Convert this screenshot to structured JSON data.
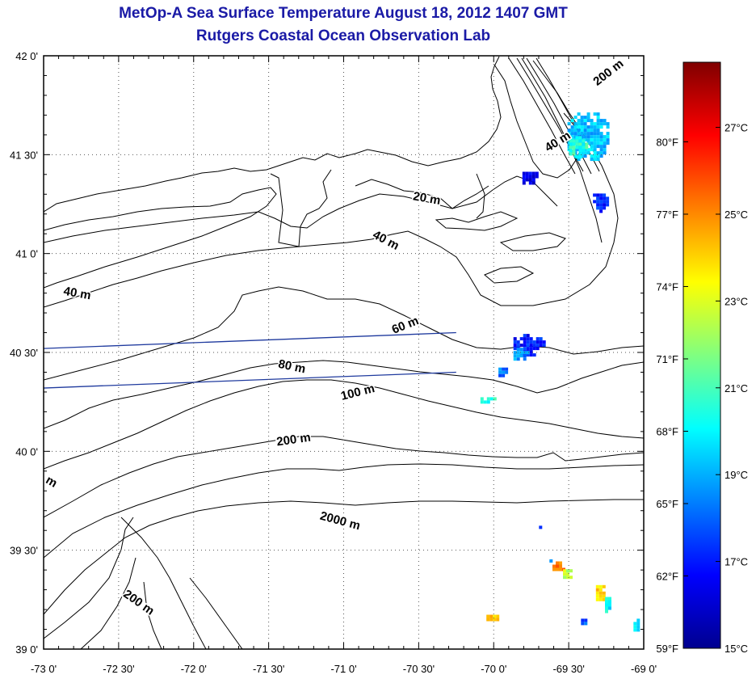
{
  "title": "MetOp-A Sea Surface Temperature August 18, 2012 1407 GMT",
  "subtitle": "Rutgers Coastal Ocean Observation Lab",
  "map": {
    "lon_range": [
      -73,
      -69
    ],
    "lat_range": [
      39,
      42
    ],
    "lon_ticks": [
      {
        "value": -73,
        "label": "-73 0'"
      },
      {
        "value": -72.5,
        "label": "-72 30'"
      },
      {
        "value": -72,
        "label": "-72 0'"
      },
      {
        "value": -71.5,
        "label": "-71 30'"
      },
      {
        "value": -71,
        "label": "-71 0'"
      },
      {
        "value": -70.5,
        "label": "-70 30'"
      },
      {
        "value": -70,
        "label": "-70 0'"
      },
      {
        "value": -69.5,
        "label": "-69 30'"
      },
      {
        "value": -69,
        "label": "-69 0'"
      }
    ],
    "lat_ticks": [
      {
        "value": 42,
        "label": "42 0'"
      },
      {
        "value": 41.5,
        "label": "41 30'"
      },
      {
        "value": 41,
        "label": "41 0'"
      },
      {
        "value": 40.5,
        "label": "40 30'"
      },
      {
        "value": 40,
        "label": "40 0'"
      },
      {
        "value": 39.5,
        "label": "39 30'"
      },
      {
        "value": 39,
        "label": "39 0'"
      }
    ],
    "grid": "dotted",
    "land_color": "#ffffff",
    "contour_color": "#000000",
    "transect_color": "#1f3a9e",
    "contour_labels": [
      {
        "text": "200 m",
        "lon": -69.22,
        "lat": 41.9,
        "angle": 38
      },
      {
        "text": "40 m",
        "lon": -69.56,
        "lat": 41.55,
        "angle": 32
      },
      {
        "text": "20 m",
        "lon": -70.45,
        "lat": 41.26,
        "angle": -10
      },
      {
        "text": "40 m",
        "lon": -70.73,
        "lat": 41.05,
        "angle": -28
      },
      {
        "text": "40 m",
        "lon": -72.78,
        "lat": 40.78,
        "angle": -10
      },
      {
        "text": "60 m",
        "lon": -70.58,
        "lat": 40.62,
        "angle": 22
      },
      {
        "text": "80 m",
        "lon": -71.35,
        "lat": 40.41,
        "angle": -12
      },
      {
        "text": "100 m",
        "lon": -70.9,
        "lat": 40.28,
        "angle": 14
      },
      {
        "text": "200 m",
        "lon": -71.33,
        "lat": 40.04,
        "angle": 8
      },
      {
        "text": "2000 m",
        "lon": -71.03,
        "lat": 39.63,
        "angle": -15
      },
      {
        "text": "200 m",
        "lon": -72.38,
        "lat": 39.22,
        "angle": -35
      },
      {
        "text": "m",
        "lon": -72.96,
        "lat": 39.83,
        "angle": -30
      }
    ],
    "transects": [
      {
        "from": [
          -73,
          40.52
        ],
        "to": [
          -70.25,
          40.6
        ]
      },
      {
        "from": [
          -73,
          40.32
        ],
        "to": [
          -70.25,
          40.4
        ]
      }
    ],
    "sst_patches": [
      {
        "lon": -69.38,
        "lat": 41.6,
        "rx": 0.15,
        "ry": 0.13,
        "tempC": 19.3
      },
      {
        "lon": -69.45,
        "lat": 41.55,
        "rx": 0.07,
        "ry": 0.06,
        "tempC": 20.6
      },
      {
        "lon": -69.77,
        "lat": 41.39,
        "rx": 0.06,
        "ry": 0.04,
        "tempC": 16.4
      },
      {
        "lon": -69.3,
        "lat": 41.27,
        "rx": 0.06,
        "ry": 0.05,
        "tempC": 17.2
      },
      {
        "lon": -69.78,
        "lat": 40.55,
        "rx": 0.11,
        "ry": 0.06,
        "tempC": 17.0
      },
      {
        "lon": -69.83,
        "lat": 40.5,
        "rx": 0.06,
        "ry": 0.04,
        "tempC": 18.6
      },
      {
        "lon": -69.95,
        "lat": 40.41,
        "rx": 0.04,
        "ry": 0.03,
        "tempC": 18.2
      },
      {
        "lon": -70.05,
        "lat": 40.27,
        "rx": 0.06,
        "ry": 0.02,
        "tempC": 20.5
      },
      {
        "lon": -69.58,
        "lat": 39.43,
        "rx": 0.05,
        "ry": 0.03,
        "tempC": 25.5
      },
      {
        "lon": -69.52,
        "lat": 39.39,
        "rx": 0.04,
        "ry": 0.03,
        "tempC": 22.5
      },
      {
        "lon": -69.3,
        "lat": 39.29,
        "rx": 0.04,
        "ry": 0.05,
        "tempC": 24.0
      },
      {
        "lon": -69.25,
        "lat": 39.23,
        "rx": 0.03,
        "ry": 0.05,
        "tempC": 20.0
      },
      {
        "lon": -69.41,
        "lat": 39.15,
        "rx": 0.03,
        "ry": 0.02,
        "tempC": 18.0
      },
      {
        "lon": -69.06,
        "lat": 39.13,
        "rx": 0.03,
        "ry": 0.04,
        "tempC": 19.8
      },
      {
        "lon": -70.02,
        "lat": 39.17,
        "rx": 0.05,
        "ry": 0.02,
        "tempC": 24.5
      },
      {
        "lon": -69.63,
        "lat": 39.45,
        "rx": 0.02,
        "ry": 0.02,
        "tempC": 18.0
      },
      {
        "lon": -69.7,
        "lat": 39.62,
        "rx": 0.02,
        "ry": 0.02,
        "tempC": 17.0
      }
    ]
  },
  "colorbar": {
    "min_c": 15,
    "max_c": 28.5,
    "celsius_ticks": [
      {
        "value": 27,
        "label": "27°C"
      },
      {
        "value": 25,
        "label": "25°C"
      },
      {
        "value": 23,
        "label": "23°C"
      },
      {
        "value": 21,
        "label": "21°C"
      },
      {
        "value": 19,
        "label": "19°C"
      },
      {
        "value": 17,
        "label": "17°C"
      },
      {
        "value": 15,
        "label": "15°C"
      }
    ],
    "fahrenheit_ticks": [
      {
        "value": 80,
        "label": "80°F"
      },
      {
        "value": 77,
        "label": "77°F"
      },
      {
        "value": 74,
        "label": "74°F"
      },
      {
        "value": 71,
        "label": "71°F"
      },
      {
        "value": 68,
        "label": "68°F"
      },
      {
        "value": 65,
        "label": "65°F"
      },
      {
        "value": 62,
        "label": "62°F"
      },
      {
        "value": 59,
        "label": "59°F"
      }
    ],
    "colors": [
      "#00008f",
      "#0000ff",
      "#0080ff",
      "#00ffff",
      "#80ff80",
      "#ffff00",
      "#ff8000",
      "#ff0000",
      "#800000"
    ]
  }
}
